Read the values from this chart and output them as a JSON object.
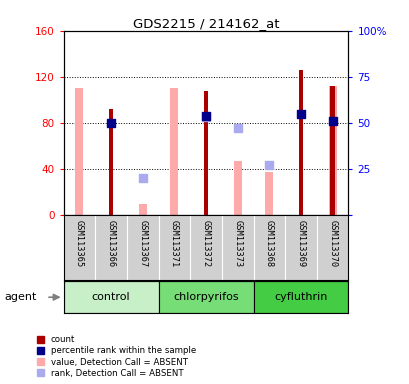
{
  "title": "GDS2215 / 214162_at",
  "samples": [
    "GSM113365",
    "GSM113366",
    "GSM113367",
    "GSM113371",
    "GSM113372",
    "GSM113373",
    "GSM113368",
    "GSM113369",
    "GSM113370"
  ],
  "groups": [
    {
      "name": "control",
      "samples": [
        0,
        1,
        2
      ],
      "color": "#c8f0c8"
    },
    {
      "name": "chlorpyrifos",
      "samples": [
        3,
        4,
        5
      ],
      "color": "#77dd77"
    },
    {
      "name": "cyfluthrin",
      "samples": [
        6,
        7,
        8
      ],
      "color": "#44cc44"
    }
  ],
  "count_values": [
    null,
    92,
    null,
    null,
    108,
    null,
    null,
    126,
    112
  ],
  "count_color": "#aa0000",
  "percentile_values": [
    null,
    50,
    null,
    null,
    54,
    null,
    null,
    55,
    51
  ],
  "percentile_color": "#00008b",
  "absent_value_values": [
    110,
    null,
    10,
    110,
    null,
    47,
    37,
    null,
    112
  ],
  "absent_value_color": "#ffaaaa",
  "absent_rank_values": [
    null,
    null,
    20,
    null,
    53,
    47,
    27,
    null,
    null
  ],
  "absent_rank_color": "#aaaaee",
  "ylim_left": [
    0,
    160
  ],
  "ylim_right": [
    0,
    100
  ],
  "yticks_left": [
    0,
    40,
    80,
    120,
    160
  ],
  "ytick_labels_left": [
    "0",
    "40",
    "80",
    "120",
    "160"
  ],
  "ytick_labels_right": [
    "0",
    "25",
    "50",
    "75",
    "100%"
  ],
  "bar_width": 0.25,
  "absent_bar_width": 0.25,
  "dot_size": 35
}
